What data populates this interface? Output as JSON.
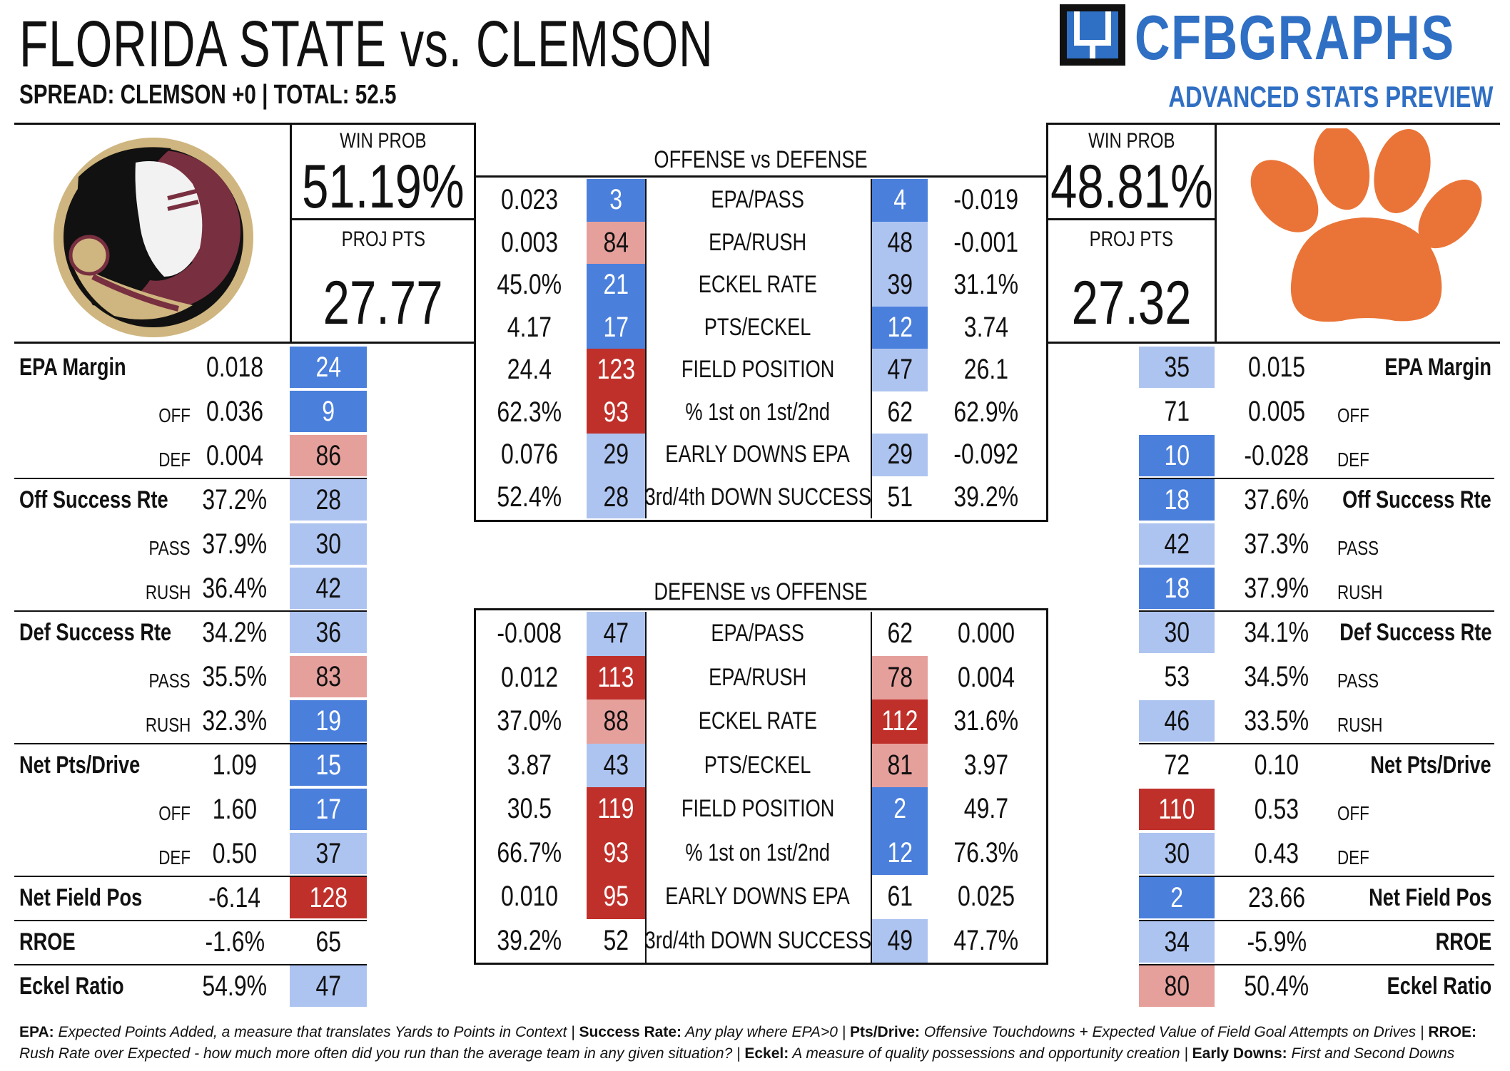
{
  "header": {
    "title": "FLORIDA STATE vs. CLEMSON",
    "spread_line": "SPREAD: CLEMSON +0 | TOTAL: 52.5",
    "brand": "CFBGRAPHS",
    "subtitle": "ADVANCED STATS PREVIEW"
  },
  "colors": {
    "dark_blue": "#4a7fdc",
    "light_blue": "#aec4f0",
    "light_red": "#e6a09c",
    "dark_red": "#c0302a",
    "brand_blue": "#2f6fc4",
    "clemson_orange": "#ea7437",
    "fsu_garnet": "#782f40",
    "fsu_gold": "#cfb57f"
  },
  "fsu": {
    "win_prob_label": "WIN PROB",
    "win_prob": "51.19%",
    "proj_pts_label": "PROJ PTS",
    "proj_pts": "27.77",
    "logo": "fsu-seminole-logo",
    "stats": [
      {
        "label": "EPA Margin",
        "value": "0.018",
        "rank": "24",
        "color": "dark_blue",
        "bold": true
      },
      {
        "label": "OFF",
        "value": "0.036",
        "rank": "9",
        "color": "dark_blue",
        "bold": false
      },
      {
        "label": "DEF",
        "value": "0.004",
        "rank": "86",
        "color": "light_red",
        "bold": false
      },
      {
        "label": "Off Success Rte",
        "value": "37.2%",
        "rank": "28",
        "color": "light_blue",
        "bold": true
      },
      {
        "label": "PASS",
        "value": "37.9%",
        "rank": "30",
        "color": "light_blue",
        "bold": false
      },
      {
        "label": "RUSH",
        "value": "36.4%",
        "rank": "42",
        "color": "light_blue",
        "bold": false
      },
      {
        "label": "Def Success Rte",
        "value": "34.2%",
        "rank": "36",
        "color": "light_blue",
        "bold": true
      },
      {
        "label": "PASS",
        "value": "35.5%",
        "rank": "83",
        "color": "light_red",
        "bold": false
      },
      {
        "label": "RUSH",
        "value": "32.3%",
        "rank": "19",
        "color": "dark_blue",
        "bold": false
      },
      {
        "label": "Net Pts/Drive",
        "value": "1.09",
        "rank": "15",
        "color": "dark_blue",
        "bold": true
      },
      {
        "label": "OFF",
        "value": "1.60",
        "rank": "17",
        "color": "dark_blue",
        "bold": false
      },
      {
        "label": "DEF",
        "value": "0.50",
        "rank": "37",
        "color": "light_blue",
        "bold": false
      },
      {
        "label": "Net Field Pos",
        "value": "-6.14",
        "rank": "128",
        "color": "dark_red",
        "bold": true
      },
      {
        "label": "RROE",
        "value": "-1.6%",
        "rank": "65",
        "color": "none",
        "bold": true
      },
      {
        "label": "Eckel Ratio",
        "value": "54.9%",
        "rank": "47",
        "color": "light_blue",
        "bold": true
      }
    ]
  },
  "clemson": {
    "win_prob_label": "WIN PROB",
    "win_prob": "48.81%",
    "proj_pts_label": "PROJ PTS",
    "proj_pts": "27.32",
    "logo": "clemson-paw-logo",
    "stats": [
      {
        "label": "EPA Margin",
        "value": "0.015",
        "rank": "35",
        "color": "light_blue",
        "bold": true
      },
      {
        "label": "OFF",
        "value": "0.005",
        "rank": "71",
        "color": "none",
        "bold": false
      },
      {
        "label": "DEF",
        "value": "-0.028",
        "rank": "10",
        "color": "dark_blue",
        "bold": false
      },
      {
        "label": "Off Success Rte",
        "value": "37.6%",
        "rank": "18",
        "color": "dark_blue",
        "bold": true
      },
      {
        "label": "PASS",
        "value": "37.3%",
        "rank": "42",
        "color": "light_blue",
        "bold": false
      },
      {
        "label": "RUSH",
        "value": "37.9%",
        "rank": "18",
        "color": "dark_blue",
        "bold": false
      },
      {
        "label": "Def Success Rte",
        "value": "34.1%",
        "rank": "30",
        "color": "light_blue",
        "bold": true
      },
      {
        "label": "PASS",
        "value": "34.5%",
        "rank": "53",
        "color": "none",
        "bold": false
      },
      {
        "label": "RUSH",
        "value": "33.5%",
        "rank": "46",
        "color": "light_blue",
        "bold": false
      },
      {
        "label": "Net Pts/Drive",
        "value": "0.10",
        "rank": "72",
        "color": "none",
        "bold": true
      },
      {
        "label": "OFF",
        "value": "0.53",
        "rank": "110",
        "color": "dark_red",
        "bold": false
      },
      {
        "label": "DEF",
        "value": "0.43",
        "rank": "30",
        "color": "light_blue",
        "bold": false
      },
      {
        "label": "Net Field Pos",
        "value": "23.66",
        "rank": "2",
        "color": "dark_blue",
        "bold": true
      },
      {
        "label": "RROE",
        "value": "-5.9%",
        "rank": "34",
        "color": "light_blue",
        "bold": true
      },
      {
        "label": "Eckel Ratio",
        "value": "50.4%",
        "rank": "80",
        "color": "light_red",
        "bold": true
      }
    ]
  },
  "off_vs_def": {
    "title": "OFFENSE vs DEFENSE",
    "rows": [
      {
        "l_val": "0.023",
        "l_rank": "3",
        "l_color": "dark_blue",
        "metric": "EPA/PASS",
        "r_rank": "4",
        "r_color": "dark_blue",
        "r_val": "-0.019"
      },
      {
        "l_val": "0.003",
        "l_rank": "84",
        "l_color": "light_red",
        "metric": "EPA/RUSH",
        "r_rank": "48",
        "r_color": "light_blue",
        "r_val": "-0.001"
      },
      {
        "l_val": "45.0%",
        "l_rank": "21",
        "l_color": "dark_blue",
        "metric": "ECKEL RATE",
        "r_rank": "39",
        "r_color": "light_blue",
        "r_val": "31.1%"
      },
      {
        "l_val": "4.17",
        "l_rank": "17",
        "l_color": "dark_blue",
        "metric": "PTS/ECKEL",
        "r_rank": "12",
        "r_color": "dark_blue",
        "r_val": "3.74"
      },
      {
        "l_val": "24.4",
        "l_rank": "123",
        "l_color": "dark_red",
        "metric": "FIELD POSITION",
        "r_rank": "47",
        "r_color": "light_blue",
        "r_val": "26.1"
      },
      {
        "l_val": "62.3%",
        "l_rank": "93",
        "l_color": "dark_red",
        "metric": "% 1st on 1st/2nd",
        "r_rank": "62",
        "r_color": "none",
        "r_val": "62.9%"
      },
      {
        "l_val": "0.076",
        "l_rank": "29",
        "l_color": "light_blue",
        "metric": "EARLY DOWNS EPA",
        "r_rank": "29",
        "r_color": "light_blue",
        "r_val": "-0.092"
      },
      {
        "l_val": "52.4%",
        "l_rank": "28",
        "l_color": "light_blue",
        "metric": "3rd/4th DOWN SUCCESS",
        "r_rank": "51",
        "r_color": "none",
        "r_val": "39.2%"
      }
    ]
  },
  "def_vs_off": {
    "title": "DEFENSE vs OFFENSE",
    "rows": [
      {
        "l_val": "-0.008",
        "l_rank": "47",
        "l_color": "light_blue",
        "metric": "EPA/PASS",
        "r_rank": "62",
        "r_color": "none",
        "r_val": "0.000"
      },
      {
        "l_val": "0.012",
        "l_rank": "113",
        "l_color": "dark_red",
        "metric": "EPA/RUSH",
        "r_rank": "78",
        "r_color": "light_red",
        "r_val": "0.004"
      },
      {
        "l_val": "37.0%",
        "l_rank": "88",
        "l_color": "light_red",
        "metric": "ECKEL RATE",
        "r_rank": "112",
        "r_color": "dark_red",
        "r_val": "31.6%"
      },
      {
        "l_val": "3.87",
        "l_rank": "43",
        "l_color": "light_blue",
        "metric": "PTS/ECKEL",
        "r_rank": "81",
        "r_color": "light_red",
        "r_val": "3.97"
      },
      {
        "l_val": "30.5",
        "l_rank": "119",
        "l_color": "dark_red",
        "metric": "FIELD POSITION",
        "r_rank": "2",
        "r_color": "dark_blue",
        "r_val": "49.7"
      },
      {
        "l_val": "66.7%",
        "l_rank": "93",
        "l_color": "dark_red",
        "metric": "% 1st on 1st/2nd",
        "r_rank": "12",
        "r_color": "dark_blue",
        "r_val": "76.3%"
      },
      {
        "l_val": "0.010",
        "l_rank": "95",
        "l_color": "dark_red",
        "metric": "EARLY DOWNS EPA",
        "r_rank": "61",
        "r_color": "none",
        "r_val": "0.025"
      },
      {
        "l_val": "39.2%",
        "l_rank": "52",
        "l_color": "none",
        "metric": "3rd/4th DOWN SUCCESS",
        "r_rank": "49",
        "r_color": "light_blue",
        "r_val": "47.7%"
      }
    ]
  },
  "footer": [
    {
      "term": "EPA:",
      "def": " Expected Points Added, a measure that translates Yards to Points in Context | "
    },
    {
      "term": "Success Rate:",
      "def": " Any play where EPA>0 | "
    },
    {
      "term": "Pts/Drive:",
      "def": " Offensive Touchdowns + Expected Value of Field Goal Attempts on Drives | "
    },
    {
      "term": "RROE:",
      "def": " Rush Rate over Expected - how much more often did you run than the average team in any given situation? | "
    },
    {
      "term": "Eckel:",
      "def": " A measure of quality possessions and opportunity creation | "
    },
    {
      "term": "Early Downs:",
      "def": " First and Second Downs"
    }
  ]
}
